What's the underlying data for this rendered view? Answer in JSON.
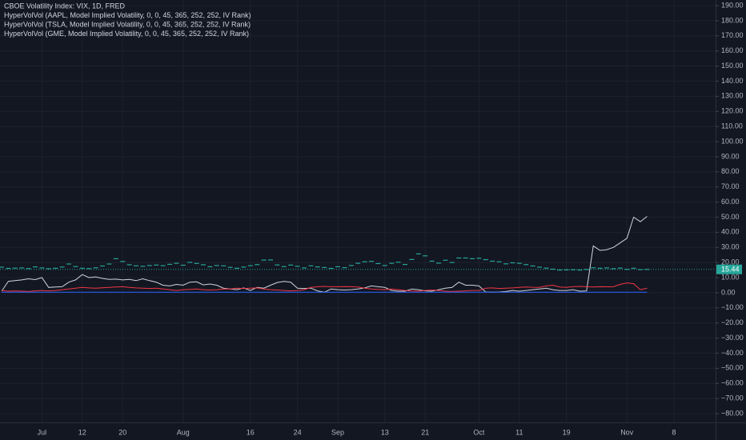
{
  "chart_data": {
    "type": "line",
    "legend": "top-left",
    "grid": true,
    "categories": [
      null,
      null,
      null,
      null,
      null,
      null,
      "Jul",
      null,
      null,
      null,
      null,
      null,
      "12",
      null,
      null,
      null,
      null,
      null,
      "20",
      null,
      null,
      null,
      null,
      null,
      null,
      null,
      null,
      "Aug",
      null,
      null,
      null,
      null,
      null,
      null,
      null,
      null,
      null,
      "16",
      null,
      null,
      null,
      null,
      null,
      null,
      "24",
      null,
      null,
      null,
      null,
      null,
      "Sep",
      null,
      null,
      null,
      null,
      null,
      null,
      "13",
      null,
      null,
      null,
      null,
      null,
      "21",
      null,
      null,
      null,
      null,
      null,
      null,
      null,
      "Oct",
      null,
      null,
      null,
      null,
      null,
      "11",
      null,
      null,
      null,
      null,
      null,
      null,
      "19",
      null,
      null,
      null,
      null,
      null,
      null,
      null,
      null,
      "Nov",
      null,
      null,
      null,
      null,
      null,
      null,
      "8"
    ],
    "series": [
      {
        "name": "CBOE Volatility Index: VIX, 1D, FRED",
        "color": "#26a69a",
        "style": "dashes",
        "values": [
          16.9,
          16.1,
          16.3,
          16.4,
          16.0,
          17.1,
          16.4,
          15.9,
          16.2,
          17.0,
          19.0,
          17.3,
          16.2,
          16.0,
          16.5,
          17.7,
          19.0,
          22.5,
          20.7,
          18.5,
          17.8,
          17.5,
          18.0,
          18.3,
          17.9,
          18.8,
          19.5,
          18.2,
          20.1,
          19.4,
          18.5,
          17.2,
          18.0,
          17.8,
          16.8,
          16.2,
          17.0,
          17.9,
          18.6,
          21.6,
          21.7,
          18.4,
          17.3,
          18.3,
          17.5,
          16.4,
          17.8,
          17.1,
          16.7,
          16.1,
          17.2,
          16.6,
          18.0,
          19.5,
          20.5,
          20.8,
          19.3,
          18.0,
          19.5,
          20.2,
          18.7,
          22.0,
          25.7,
          24.4,
          20.9,
          19.6,
          21.5,
          20.0,
          23.0,
          23.0,
          22.5,
          22.8,
          21.9,
          20.9,
          20.5,
          19.1,
          19.8,
          19.5,
          18.6,
          17.7,
          16.9,
          16.3,
          15.6,
          15.0,
          15.1,
          15.2,
          15.0,
          15.4,
          16.5,
          16.2,
          16.4,
          15.9,
          16.3,
          15.5,
          16.2,
          15.3,
          15.44,
          null,
          null,
          null,
          null
        ]
      },
      {
        "name": "HyperVolVol (AAPL, Model Implied Volatility, 0, 0, 45, 365, 252, 252, IV Rank)",
        "color": "#d1d4dc",
        "values": [
          1.0,
          7.5,
          8.0,
          8.5,
          9.2,
          8.7,
          10.0,
          3.5,
          3.8,
          4.0,
          7.0,
          8.5,
          12.0,
          10.0,
          10.5,
          9.5,
          8.8,
          9.0,
          8.5,
          8.8,
          8.0,
          9.2,
          8.0,
          7.0,
          5.0,
          4.5,
          5.5,
          5.0,
          7.0,
          7.2,
          5.2,
          5.8,
          5.0,
          3.0,
          2.5,
          2.0,
          3.2,
          1.5,
          3.5,
          3.0,
          5.0,
          6.8,
          7.5,
          7.0,
          3.0,
          2.8,
          3.0,
          1.2,
          0.3,
          2.5,
          2.0,
          1.8,
          2.0,
          2.5,
          3.2,
          4.5,
          4.0,
          3.5,
          1.5,
          1.0,
          1.0,
          2.5,
          2.0,
          1.2,
          1.0,
          2.0,
          3.0,
          3.5,
          7.0,
          5.0,
          5.0,
          4.5,
          0.5,
          0.3,
          0.5,
          0.8,
          1.5,
          1.0,
          1.5,
          2.0,
          2.5,
          3.0,
          2.0,
          1.5,
          1.5,
          2.0,
          1.0,
          1.2,
          31.0,
          28.0,
          28.5,
          30.0,
          33.0,
          36.0,
          50.0,
          47.0,
          50.5,
          null,
          null,
          null,
          null
        ]
      },
      {
        "name": "HyperVolVol (TSLA, Model Implied Volatility, 0, 0, 45, 365, 252, 252, IV Rank)",
        "color": "#f23645",
        "values": [
          1.5,
          1.0,
          1.2,
          1.0,
          0.8,
          1.2,
          1.5,
          1.2,
          1.5,
          2.0,
          2.5,
          3.0,
          3.5,
          3.2,
          3.0,
          3.3,
          3.5,
          3.8,
          4.0,
          3.5,
          3.2,
          3.0,
          2.8,
          3.0,
          2.5,
          2.0,
          1.5,
          2.0,
          2.2,
          2.5,
          2.0,
          1.8,
          2.0,
          2.5,
          2.5,
          3.0,
          2.8,
          3.0,
          3.2,
          2.5,
          2.0,
          1.8,
          1.5,
          1.2,
          1.5,
          2.0,
          3.5,
          4.0,
          4.2,
          4.0,
          4.0,
          4.1,
          4.0,
          3.8,
          3.0,
          2.5,
          2.2,
          2.0,
          2.5,
          2.0,
          1.5,
          1.2,
          1.0,
          1.5,
          1.8,
          1.5,
          1.0,
          0.8,
          1.0,
          1.2,
          1.5,
          1.5,
          3.0,
          3.2,
          2.8,
          3.0,
          3.2,
          3.5,
          3.8,
          3.6,
          3.5,
          4.5,
          5.0,
          3.8,
          3.5,
          4.0,
          4.2,
          4.0,
          3.8,
          4.0,
          3.9,
          4.0,
          5.5,
          6.5,
          6.0,
          2.0,
          3.0,
          null,
          null,
          null,
          null
        ]
      },
      {
        "name": "HyperVolVol (GME, Model Implied Volatility, 0, 0, 45, 365, 252, 252, IV Rank)",
        "color": "#2962ff",
        "values": [
          0.3,
          0.3,
          0.3,
          0.3,
          0.3,
          0.3,
          0.3,
          0.3,
          0.3,
          0.3,
          0.3,
          0.3,
          0.3,
          0.3,
          0.3,
          0.3,
          0.3,
          0.3,
          0.3,
          0.3,
          0.3,
          0.3,
          0.3,
          0.3,
          0.3,
          0.3,
          0.3,
          0.3,
          0.3,
          0.3,
          0.3,
          0.3,
          0.3,
          0.3,
          0.3,
          0.3,
          0.3,
          0.3,
          0.3,
          0.3,
          0.3,
          0.3,
          0.3,
          0.3,
          0.3,
          0.3,
          0.3,
          0.3,
          0.3,
          0.3,
          0.3,
          0.3,
          0.3,
          0.3,
          0.3,
          0.3,
          0.3,
          0.3,
          0.3,
          0.3,
          0.3,
          0.3,
          0.3,
          0.3,
          0.3,
          0.3,
          0.3,
          0.3,
          0.3,
          0.3,
          0.3,
          0.3,
          0.3,
          0.3,
          0.3,
          0.3,
          0.3,
          0.3,
          0.3,
          0.3,
          0.3,
          0.3,
          0.3,
          0.3,
          0.3,
          0.3,
          0.3,
          0.3,
          0.3,
          0.3,
          0.3,
          0.3,
          0.3,
          0.3,
          0.3,
          0.3,
          0.3,
          null,
          null,
          null,
          null
        ]
      }
    ],
    "ylim": [
      -85.8,
      193.7
    ],
    "yticks": [
      {
        "value": 190,
        "label": "190.00"
      },
      {
        "value": 180,
        "label": "180.00"
      },
      {
        "value": 170,
        "label": "170.00"
      },
      {
        "value": 160,
        "label": "160.00"
      },
      {
        "value": 150,
        "label": "150.00"
      },
      {
        "value": 140,
        "label": "140.00"
      },
      {
        "value": 130,
        "label": "130.00"
      },
      {
        "value": 120,
        "label": "120.00"
      },
      {
        "value": 110,
        "label": "110.00"
      },
      {
        "value": 100,
        "label": "100.00"
      },
      {
        "value": 90,
        "label": "90.00"
      },
      {
        "value": 80,
        "label": "80.00"
      },
      {
        "value": 70,
        "label": "70.00"
      },
      {
        "value": 60,
        "label": "60.00"
      },
      {
        "value": 50,
        "label": "50.00"
      },
      {
        "value": 40,
        "label": "40.00"
      },
      {
        "value": 30,
        "label": "30.00"
      },
      {
        "value": 20,
        "label": "20.00"
      },
      {
        "value": 10,
        "label": "10.00"
      },
      {
        "value": 0,
        "label": "0.00"
      },
      {
        "value": -10,
        "label": "−10.00"
      },
      {
        "value": -20,
        "label": "−20.00"
      },
      {
        "value": -30,
        "label": "−30.00"
      },
      {
        "value": -40,
        "label": "−40.00"
      },
      {
        "value": -50,
        "label": "−50.00"
      },
      {
        "value": -60,
        "label": "−60.00"
      },
      {
        "value": -70,
        "label": "−70.00"
      },
      {
        "value": -80,
        "label": "−80.00"
      }
    ]
  }
}
